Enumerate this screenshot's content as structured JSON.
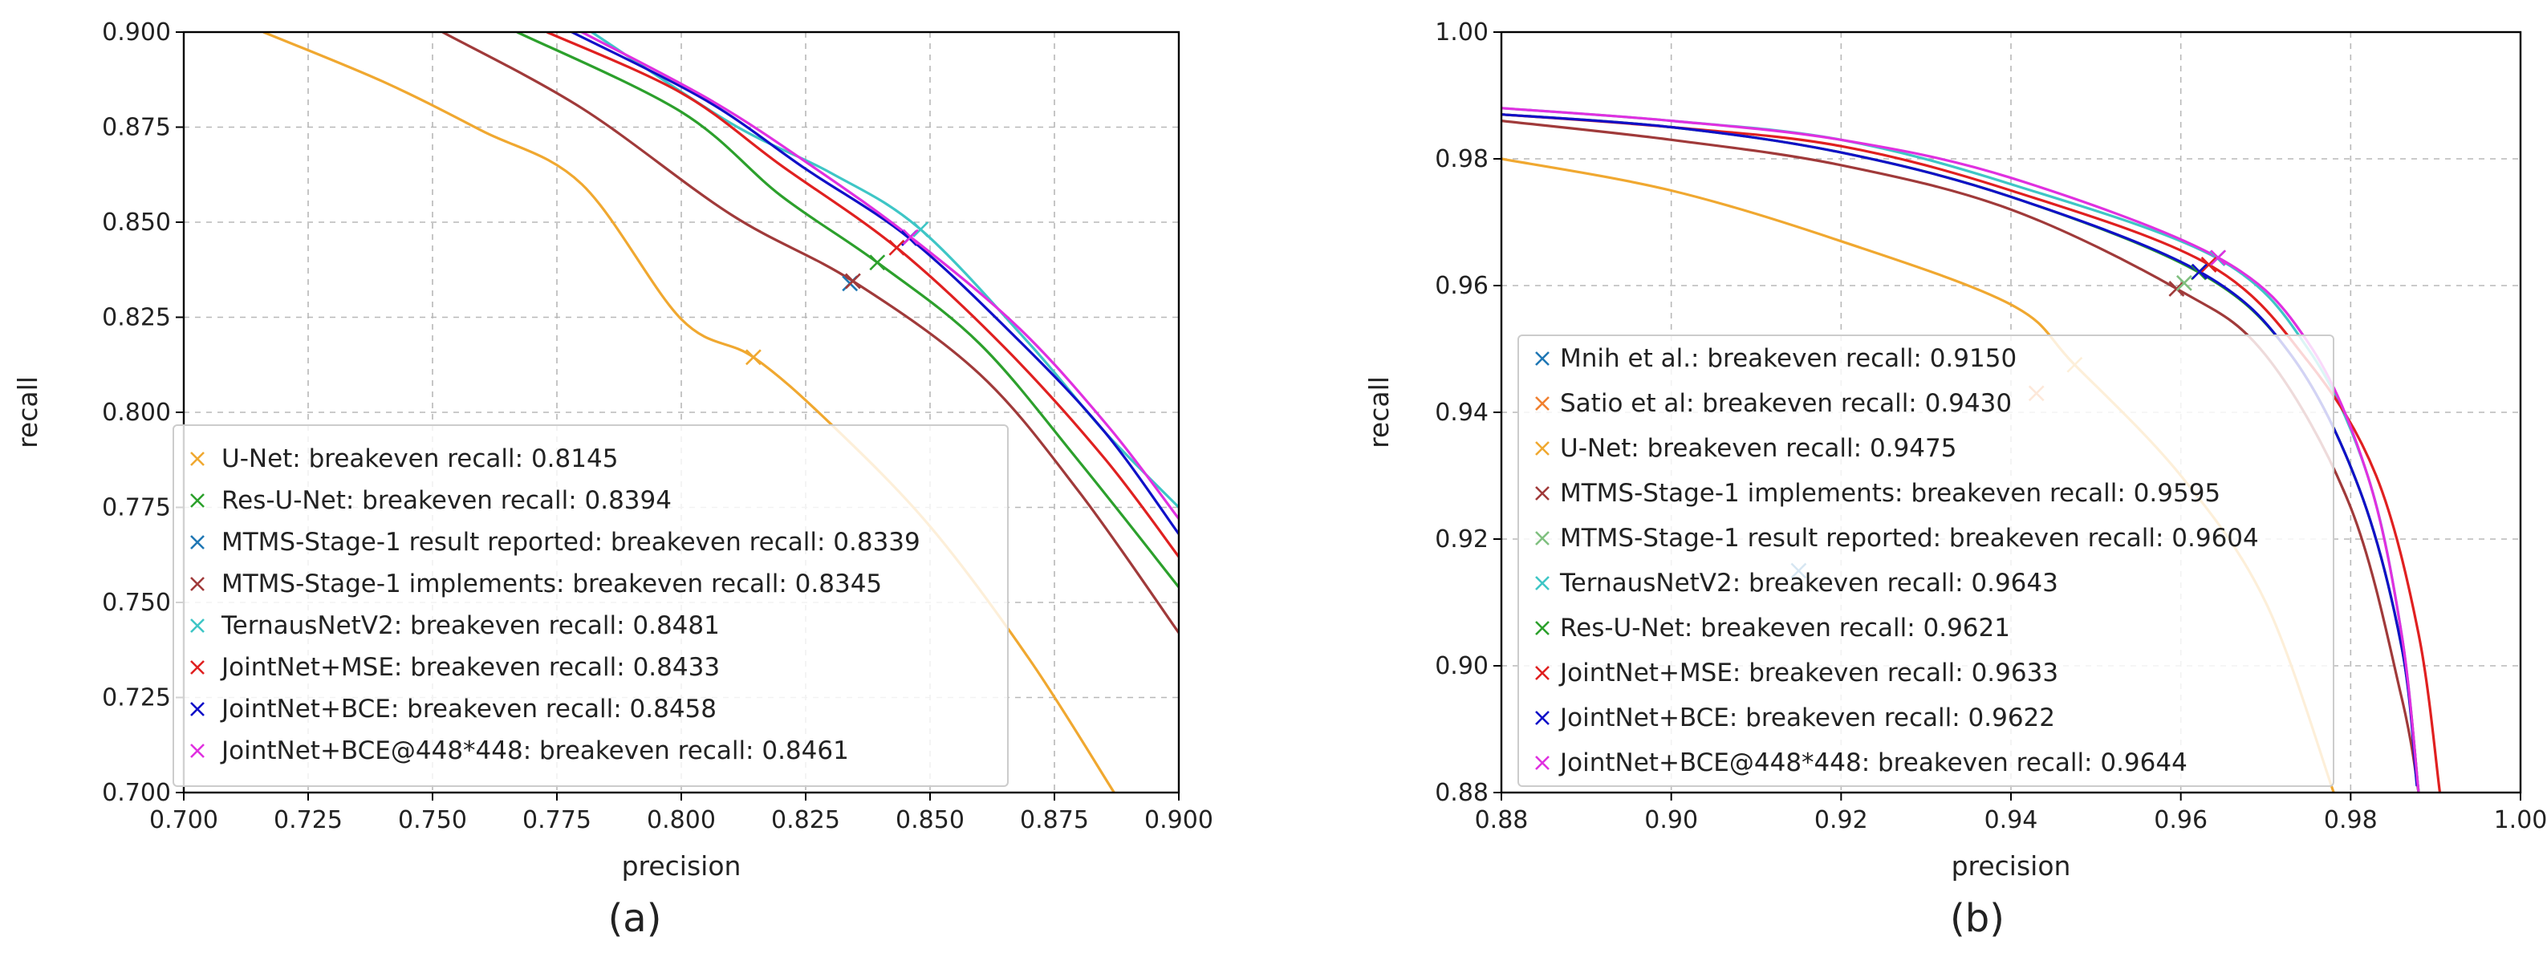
{
  "chart_data": [
    {
      "type": "line",
      "panel": "a",
      "caption": "(a)",
      "xlabel": "precision",
      "ylabel": "recall",
      "xlim": [
        0.7,
        0.9
      ],
      "ylim": [
        0.7,
        0.9
      ],
      "xticks": [
        "0.700",
        "0.725",
        "0.750",
        "0.775",
        "0.800",
        "0.825",
        "0.850",
        "0.875",
        "0.900"
      ],
      "yticks": [
        "0.700",
        "0.725",
        "0.750",
        "0.775",
        "0.800",
        "0.825",
        "0.850",
        "0.875",
        "0.900"
      ],
      "grid": true,
      "legend_position": "lower-left",
      "series": [
        {
          "name": "U-Net",
          "label": "U-Net: breakeven recall: 0.8145",
          "color": "#f0a830",
          "breakeven": 0.8145,
          "points": [
            [
              0.716,
              0.9
            ],
            [
              0.74,
              0.887
            ],
            [
              0.76,
              0.874
            ],
            [
              0.78,
              0.86
            ],
            [
              0.8,
              0.8245
            ],
            [
              0.8145,
              0.8145
            ],
            [
              0.83,
              0.797
            ],
            [
              0.85,
              0.77
            ],
            [
              0.87,
              0.735
            ],
            [
              0.887,
              0.7
            ]
          ]
        },
        {
          "name": "Res-U-Net",
          "label": "Res-U-Net: breakeven recall: 0.8394",
          "color": "#2ca02c",
          "breakeven": 0.8394,
          "points": [
            [
              0.767,
              0.9
            ],
            [
              0.8,
              0.879
            ],
            [
              0.82,
              0.857
            ],
            [
              0.8394,
              0.8394
            ],
            [
              0.86,
              0.818
            ],
            [
              0.88,
              0.787
            ],
            [
              0.9,
              0.754
            ]
          ]
        },
        {
          "name": "MTMS-Stage-1 result reported",
          "label": "MTMS-Stage-1 result reported: breakeven recall: 0.8339",
          "color": "#1f77b4",
          "breakeven": 0.8339,
          "points": []
        },
        {
          "name": "MTMS-Stage-1 implements",
          "label": "MTMS-Stage-1 implements: breakeven recall: 0.8345",
          "color": "#a03a3a",
          "breakeven": 0.8345,
          "points": [
            [
              0.752,
              0.9
            ],
            [
              0.78,
              0.88
            ],
            [
              0.81,
              0.852
            ],
            [
              0.8345,
              0.8345
            ],
            [
              0.86,
              0.81
            ],
            [
              0.88,
              0.779
            ],
            [
              0.9,
              0.742
            ]
          ]
        },
        {
          "name": "TernausNetV2",
          "label": "TernausNetV2: breakeven recall: 0.8481",
          "color": "#3ec6c6",
          "breakeven": 0.8481,
          "points": [
            [
              0.782,
              0.9
            ],
            [
              0.81,
              0.876
            ],
            [
              0.83,
              0.863
            ],
            [
              0.8481,
              0.8481
            ],
            [
              0.87,
              0.818
            ],
            [
              0.885,
              0.795
            ],
            [
              0.9,
              0.775
            ]
          ]
        },
        {
          "name": "JointNet+MSE",
          "label": "JointNet+MSE: breakeven recall: 0.8433",
          "color": "#e02020",
          "breakeven": 0.8433,
          "points": [
            [
              0.773,
              0.9
            ],
            [
              0.8,
              0.884
            ],
            [
              0.82,
              0.865
            ],
            [
              0.8433,
              0.8433
            ],
            [
              0.865,
              0.817
            ],
            [
              0.885,
              0.788
            ],
            [
              0.9,
              0.762
            ]
          ]
        },
        {
          "name": "JointNet+BCE",
          "label": "JointNet+BCE: breakeven recall: 0.8458",
          "color": "#1010c8",
          "breakeven": 0.8458,
          "points": [
            [
              0.778,
              0.9
            ],
            [
              0.805,
              0.882
            ],
            [
              0.825,
              0.864
            ],
            [
              0.8458,
              0.8458
            ],
            [
              0.867,
              0.82
            ],
            [
              0.885,
              0.795
            ],
            [
              0.9,
              0.768
            ]
          ]
        },
        {
          "name": "JointNet+BCE@448*448",
          "label": "JointNet+BCE@448*448: breakeven recall: 0.8461",
          "color": "#e030e0",
          "breakeven": 0.8461,
          "points": [
            [
              0.78,
              0.9
            ],
            [
              0.806,
              0.882
            ],
            [
              0.826,
              0.865
            ],
            [
              0.8461,
              0.8461
            ],
            [
              0.868,
              0.822
            ],
            [
              0.886,
              0.796
            ],
            [
              0.9,
              0.772
            ]
          ]
        }
      ]
    },
    {
      "type": "line",
      "panel": "b",
      "caption": "(b)",
      "xlabel": "precision",
      "ylabel": "recall",
      "xlim": [
        0.88,
        1.0
      ],
      "ylim": [
        0.88,
        1.0
      ],
      "xticks": [
        "0.88",
        "0.90",
        "0.92",
        "0.94",
        "0.96",
        "0.98",
        "1.00"
      ],
      "yticks": [
        "0.88",
        "0.90",
        "0.92",
        "0.94",
        "0.96",
        "0.98",
        "1.00"
      ],
      "grid": true,
      "legend_position": "lower-left",
      "series": [
        {
          "name": "Mnih et al.",
          "label": "Mnih et al.: breakeven recall: 0.9150",
          "color": "#1f77b4",
          "breakeven": 0.915,
          "points": []
        },
        {
          "name": "Satio et al",
          "label": "Satio et al: breakeven recall: 0.9430",
          "color": "#f08030",
          "breakeven": 0.943,
          "points": []
        },
        {
          "name": "U-Net",
          "label": "U-Net: breakeven recall: 0.9475",
          "color": "#f0a830",
          "breakeven": 0.9475,
          "points": [
            [
              0.88,
              0.98
            ],
            [
              0.9,
              0.975
            ],
            [
              0.92,
              0.967
            ],
            [
              0.94,
              0.957
            ],
            [
              0.9475,
              0.9475
            ],
            [
              0.96,
              0.93
            ],
            [
              0.97,
              0.91
            ],
            [
              0.978,
              0.88
            ]
          ]
        },
        {
          "name": "MTMS-Stage-1 implements",
          "label": "MTMS-Stage-1 implements: breakeven recall: 0.9595",
          "color": "#a03a3a",
          "breakeven": 0.9595,
          "points": [
            [
              0.88,
              0.986
            ],
            [
              0.9,
              0.983
            ],
            [
              0.92,
              0.979
            ],
            [
              0.94,
              0.972
            ],
            [
              0.9595,
              0.9595
            ],
            [
              0.97,
              0.949
            ],
            [
              0.98,
              0.925
            ],
            [
              0.986,
              0.895
            ],
            [
              0.988,
              0.88
            ]
          ]
        },
        {
          "name": "MTMS-Stage-1 result reported",
          "label": "MTMS-Stage-1 result reported: breakeven recall: 0.9604",
          "color": "#80c080",
          "breakeven": 0.9604,
          "points": []
        },
        {
          "name": "TernausNetV2",
          "label": "TernausNetV2: breakeven recall: 0.9643",
          "color": "#3ec6c6",
          "breakeven": 0.9643,
          "points": [
            [
              0.88,
              0.988
            ],
            [
              0.9,
              0.986
            ],
            [
              0.92,
              0.983
            ],
            [
              0.94,
              0.976
            ],
            [
              0.9643,
              0.9643
            ],
            [
              0.975,
              0.95
            ],
            [
              0.982,
              0.93
            ],
            [
              0.986,
              0.905
            ],
            [
              0.988,
              0.88
            ]
          ]
        },
        {
          "name": "Res-U-Net",
          "label": "Res-U-Net: breakeven recall: 0.9621",
          "color": "#2ca02c",
          "breakeven": 0.9621,
          "points": [
            [
              0.88,
              0.987
            ],
            [
              0.9,
              0.985
            ],
            [
              0.92,
              0.981
            ],
            [
              0.94,
              0.974
            ],
            [
              0.9621,
              0.9621
            ],
            [
              0.973,
              0.949
            ],
            [
              0.981,
              0.928
            ],
            [
              0.986,
              0.903
            ],
            [
              0.988,
              0.88
            ]
          ]
        },
        {
          "name": "JointNet+MSE",
          "label": "JointNet+MSE: breakeven recall: 0.9633",
          "color": "#e02020",
          "breakeven": 0.9633,
          "points": [
            [
              0.88,
              0.987
            ],
            [
              0.9,
              0.985
            ],
            [
              0.92,
              0.982
            ],
            [
              0.94,
              0.975
            ],
            [
              0.9633,
              0.9633
            ],
            [
              0.975,
              0.948
            ],
            [
              0.983,
              0.93
            ],
            [
              0.988,
              0.905
            ],
            [
              0.9905,
              0.88
            ]
          ]
        },
        {
          "name": "JointNet+BCE",
          "label": "JointNet+BCE: breakeven recall: 0.9622",
          "color": "#1010c8",
          "breakeven": 0.9622,
          "points": [
            [
              0.88,
              0.987
            ],
            [
              0.9,
              0.985
            ],
            [
              0.92,
              0.981
            ],
            [
              0.94,
              0.974
            ],
            [
              0.9622,
              0.9622
            ],
            [
              0.973,
              0.949
            ],
            [
              0.981,
              0.928
            ],
            [
              0.986,
              0.903
            ],
            [
              0.9878,
              0.881
            ]
          ]
        },
        {
          "name": "JointNet+BCE@448*448",
          "label": "JointNet+BCE@448*448: breakeven recall: 0.9644",
          "color": "#e030e0",
          "breakeven": 0.9644,
          "points": [
            [
              0.88,
              0.988
            ],
            [
              0.9,
              0.986
            ],
            [
              0.92,
              0.983
            ],
            [
              0.94,
              0.977
            ],
            [
              0.9644,
              0.9644
            ],
            [
              0.975,
              0.951
            ],
            [
              0.982,
              0.93
            ],
            [
              0.986,
              0.905
            ],
            [
              0.988,
              0.88
            ]
          ]
        }
      ]
    }
  ]
}
